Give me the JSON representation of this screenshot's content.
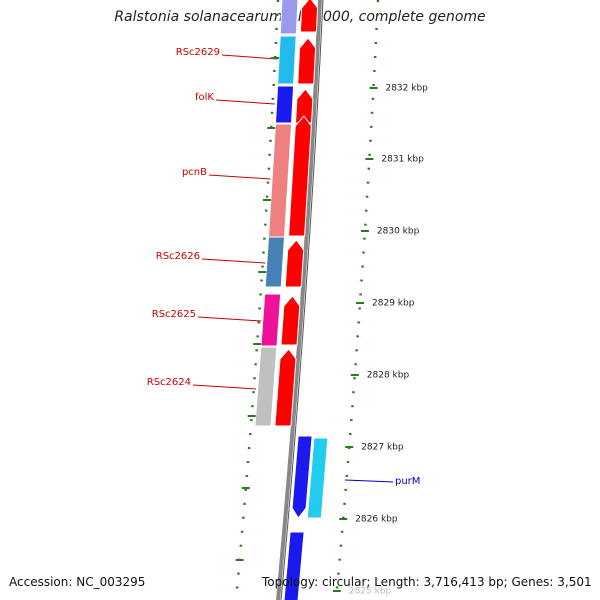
{
  "title": "Ralstonia solanacearum GMI1000, complete genome",
  "accession": "Accession: NC_003295",
  "summary": "Topology: circular; Length: 3,716,413 bp; Genes: 3,501",
  "colors": {
    "forward_cds": "#ff0000",
    "backbone": "#888888",
    "tick": "#2a7a1f",
    "gene_label": "#cc0000",
    "reverse_label": "#0000cc"
  },
  "ticks": [
    {
      "label": "2832 kbp"
    },
    {
      "label": "2831 kbp"
    },
    {
      "label": "2830 kbp"
    },
    {
      "label": "2829 kbp"
    },
    {
      "label": "2828 kbp"
    },
    {
      "label": "2827 kbp"
    },
    {
      "label": "2826 kbp"
    },
    {
      "label": "2825 kbp"
    }
  ],
  "genes": [
    {
      "name": "RSc2629",
      "color": "#22bbee"
    },
    {
      "name": "folK",
      "color": "#1a1aee"
    },
    {
      "name": "pcnB",
      "color": "#ee8080"
    },
    {
      "name": "RSc2626",
      "color": "#4682b4"
    },
    {
      "name": "RSc2625",
      "color": "#ee1199"
    },
    {
      "name": "RSc2624",
      "color": "#c0c0c0"
    },
    {
      "name": "purM",
      "color": "#22ccee"
    }
  ]
}
